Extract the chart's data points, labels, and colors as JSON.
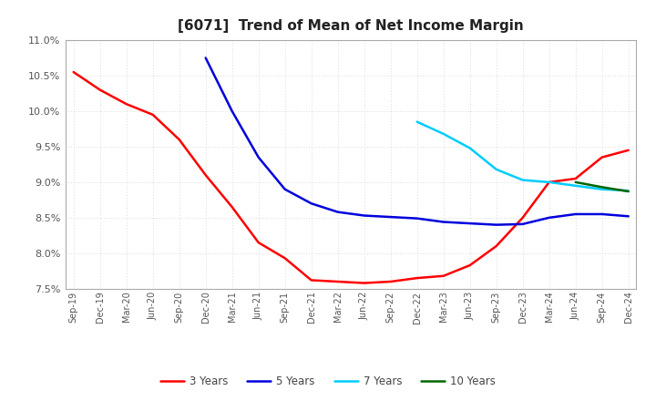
{
  "title": "[6071]  Trend of Mean of Net Income Margin",
  "title_fontsize": 11,
  "background_color": "#ffffff",
  "grid_color": "#bbbbbb",
  "ylim": [
    0.075,
    0.11
  ],
  "yticks": [
    0.075,
    0.08,
    0.085,
    0.09,
    0.095,
    0.1,
    0.105,
    0.11
  ],
  "x_labels": [
    "Sep-19",
    "Dec-19",
    "Mar-20",
    "Jun-20",
    "Sep-20",
    "Dec-20",
    "Mar-21",
    "Jun-21",
    "Sep-21",
    "Dec-21",
    "Mar-22",
    "Jun-22",
    "Sep-22",
    "Dec-22",
    "Mar-23",
    "Jun-23",
    "Sep-23",
    "Dec-23",
    "Mar-24",
    "Jun-24",
    "Sep-24",
    "Dec-24"
  ],
  "series": {
    "3 Years": {
      "color": "#ff0000",
      "data_x": [
        "Sep-19",
        "Dec-19",
        "Mar-20",
        "Jun-20",
        "Sep-20",
        "Dec-20",
        "Mar-21",
        "Jun-21",
        "Sep-21",
        "Dec-21",
        "Mar-22",
        "Jun-22",
        "Sep-22",
        "Dec-22",
        "Mar-23",
        "Jun-23",
        "Sep-23",
        "Dec-23",
        "Mar-24",
        "Jun-24",
        "Sep-24",
        "Dec-24"
      ],
      "data_y": [
        0.1055,
        0.103,
        0.101,
        0.0995,
        0.096,
        0.091,
        0.0865,
        0.0815,
        0.0793,
        0.0762,
        0.076,
        0.0758,
        0.076,
        0.0765,
        0.0768,
        0.0783,
        0.081,
        0.085,
        0.09,
        0.0905,
        0.0935,
        0.0945
      ]
    },
    "5 Years": {
      "color": "#0000dd",
      "data_x": [
        "Dec-20",
        "Mar-21",
        "Jun-21",
        "Sep-21",
        "Dec-21",
        "Mar-22",
        "Jun-22",
        "Sep-22",
        "Dec-22",
        "Mar-23",
        "Jun-23",
        "Sep-23",
        "Dec-23",
        "Mar-24",
        "Jun-24",
        "Sep-24",
        "Dec-24"
      ],
      "data_y": [
        0.1075,
        0.1,
        0.0935,
        0.089,
        0.087,
        0.0858,
        0.0853,
        0.0851,
        0.0849,
        0.0844,
        0.0842,
        0.084,
        0.0841,
        0.085,
        0.0855,
        0.0855,
        0.0852
      ]
    },
    "7 Years": {
      "color": "#00ccff",
      "data_x": [
        "Dec-22",
        "Mar-23",
        "Jun-23",
        "Sep-23",
        "Dec-23",
        "Mar-24",
        "Jun-24",
        "Sep-24",
        "Dec-24"
      ],
      "data_y": [
        0.0985,
        0.0968,
        0.0948,
        0.0918,
        0.0903,
        0.09,
        0.0895,
        0.089,
        0.0888
      ]
    },
    "10 Years": {
      "color": "#006600",
      "data_x": [
        "Jun-24",
        "Sep-24",
        "Dec-24"
      ],
      "data_y": [
        0.09,
        0.0893,
        0.0887
      ]
    }
  },
  "legend_order": [
    "3 Years",
    "5 Years",
    "7 Years",
    "10 Years"
  ]
}
